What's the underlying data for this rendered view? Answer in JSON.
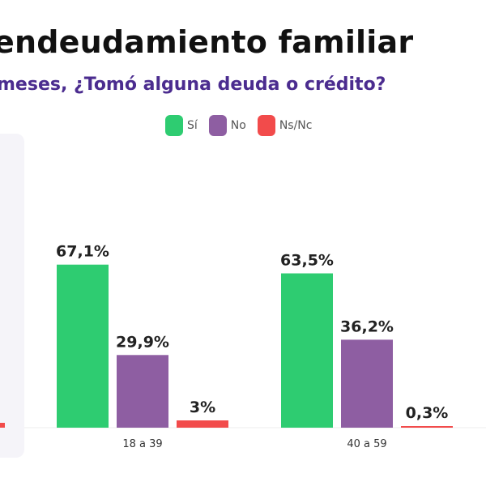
{
  "header": {
    "title": "endeudamiento familiar",
    "subtitle": "meses, ¿Tomó alguna deuda o crédito?"
  },
  "legend": [
    {
      "label": "Sí",
      "color": "#2ecc71"
    },
    {
      "label": "No",
      "color": "#8e5ea2"
    },
    {
      "label": "Ns/Nc",
      "color": "#f24b4b"
    }
  ],
  "chart_data": {
    "type": "bar",
    "title": "endeudamiento familiar",
    "subtitle": "meses, ¿Tomó alguna deuda o crédito?",
    "categories": [
      "18 a 39",
      "40 a 59"
    ],
    "series": [
      {
        "name": "Sí",
        "values": [
          67.1,
          63.5
        ],
        "labels": [
          "67,1%",
          "63,5%"
        ],
        "color": "#2ecc71"
      },
      {
        "name": "No",
        "values": [
          29.9,
          36.2
        ],
        "labels": [
          "29,9%",
          "36,2%"
        ],
        "color": "#8e5ea2"
      },
      {
        "name": "Ns/Nc",
        "values": [
          3,
          0.3
        ],
        "labels": [
          "3%",
          "0,3%"
        ],
        "color": "#f24b4b"
      }
    ],
    "ylim": [
      0,
      100
    ],
    "grid": false,
    "legend_position": "top-center"
  }
}
